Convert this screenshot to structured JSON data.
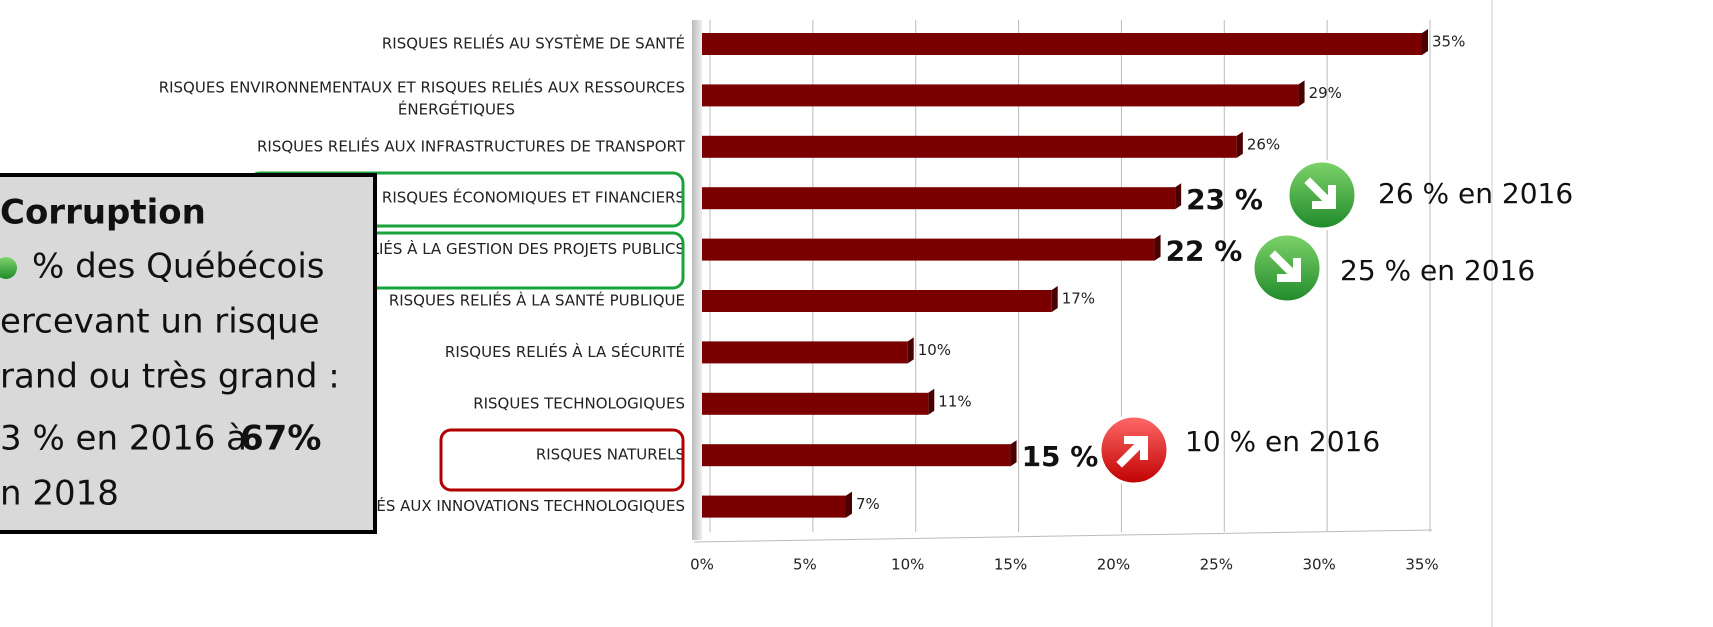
{
  "chart_data": {
    "type": "bar",
    "orientation": "horizontal",
    "categories": [
      "RISQUES RELIÉS AU SYSTÈME DE SANTÉ",
      "RISQUES ENVIRONNEMENTAUX ET RISQUES RELIÉS AUX RESSOURCES ÉNERGÉTIQUES",
      "RISQUES RELIÉS AUX INFRASTRUCTURES DE TRANSPORT",
      "RISQUES ÉCONOMIQUES ET FINANCIERS",
      "RISQUES LIÉS À LA GESTION DES PROJETS PUBLICS",
      "RISQUES RELIÉS À LA SANTÉ PUBLIQUE",
      "RISQUES RELIÉS À LA SÉCURITÉ",
      "RISQUES TECHNOLOGIQUES",
      "RISQUES NATURELS",
      "RISQUES RELIÉS AUX INNOVATIONS TECHNOLOGIQUES"
    ],
    "values": [
      35,
      29,
      26,
      23,
      22,
      17,
      10,
      11,
      15,
      7
    ],
    "value_labels": [
      "35%",
      "29%",
      "26%",
      "23 %",
      "22 %",
      "17%",
      "10%",
      "11%",
      "15 %",
      "7%"
    ],
    "color": "#7a0000",
    "xlim": [
      0,
      35
    ],
    "xticks": [
      {
        "value": 0,
        "label": "0%"
      },
      {
        "value": 5,
        "label": "5%"
      },
      {
        "value": 10,
        "label": "10%"
      },
      {
        "value": 15,
        "label": "15%"
      },
      {
        "value": 20,
        "label": "20%"
      },
      {
        "value": 25,
        "label": "25%"
      },
      {
        "value": 30,
        "label": "30%"
      },
      {
        "value": 35,
        "label": "35%"
      }
    ],
    "grid": true,
    "annotations": [
      "26 % en 2016",
      "25 % en 2016",
      "10 % en 2016"
    ],
    "callout": [
      "Corruption",
      "% des Québécois",
      "ercevant un risque",
      "rand ou très grand :",
      "3 % en 2016 à",
      "67%",
      "n 2018"
    ]
  }
}
